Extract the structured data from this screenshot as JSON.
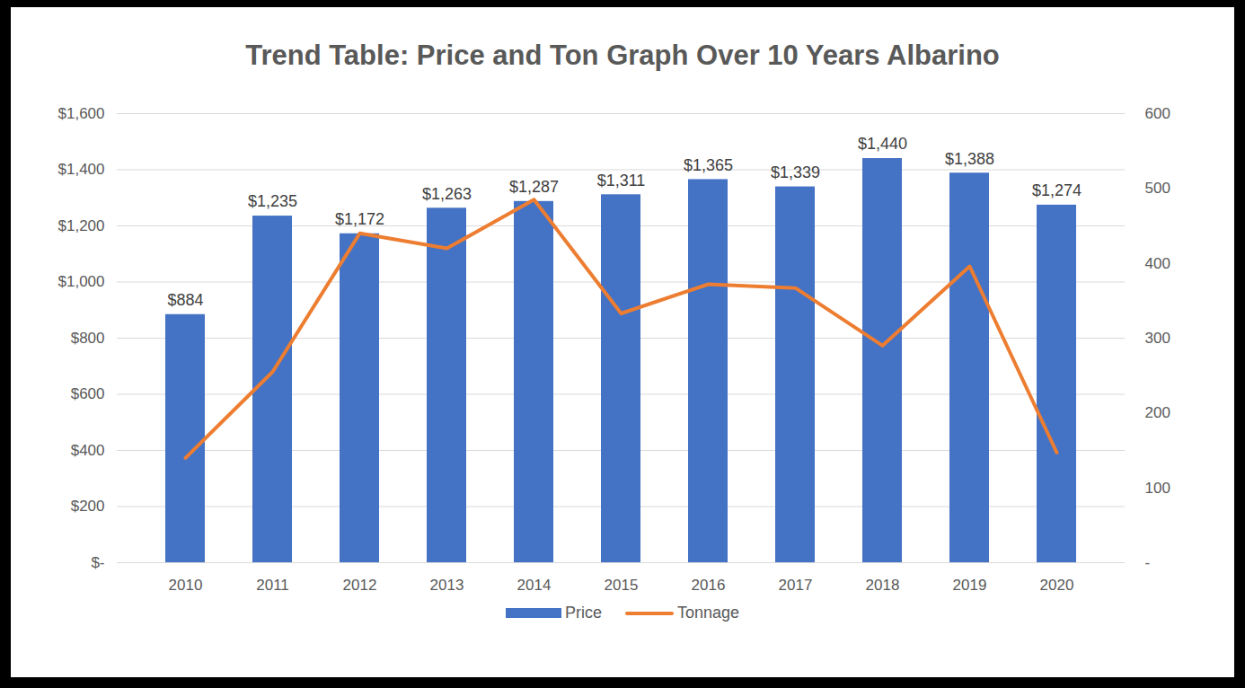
{
  "chart_data": {
    "type": "bar",
    "title": "Trend Table: Price and Ton Graph Over 10 Years Albarino",
    "categories": [
      "2010",
      "2011",
      "2012",
      "2013",
      "2014",
      "2015",
      "2016",
      "2017",
      "2018",
      "2019",
      "2020"
    ],
    "series": [
      {
        "name": "Price",
        "type": "bar",
        "color": "#4472c4",
        "values": [
          884,
          1235,
          1172,
          1263,
          1287,
          1311,
          1365,
          1339,
          1440,
          1388,
          1274
        ],
        "value_labels": [
          "$884",
          "$1,235",
          "$1,172",
          "$1,263",
          "$1,287",
          "$1,311",
          "$1,365",
          "$1,339",
          "$1,440",
          "$1,388",
          "$1,274"
        ]
      },
      {
        "name": "Tonnage",
        "type": "line",
        "color": "#ed7d31",
        "axis": "y2",
        "values": [
          140,
          255,
          440,
          420,
          485,
          333,
          372,
          367,
          290,
          396,
          147
        ]
      }
    ],
    "ylim": [
      0,
      1600
    ],
    "yticks": [
      {
        "value": 0,
        "label": "$-"
      },
      {
        "value": 200,
        "label": "$200"
      },
      {
        "value": 400,
        "label": "$400"
      },
      {
        "value": 600,
        "label": "$600"
      },
      {
        "value": 800,
        "label": "$800"
      },
      {
        "value": 1000,
        "label": "$1,000"
      },
      {
        "value": 1200,
        "label": "$1,200"
      },
      {
        "value": 1400,
        "label": "$1,400"
      },
      {
        "value": 1600,
        "label": "$1,600"
      }
    ],
    "y2lim": [
      0,
      600
    ],
    "y2ticks": [
      {
        "value": 0,
        "label": "-"
      },
      100,
      200,
      300,
      400,
      500,
      600
    ],
    "grid": true,
    "data_labels": true,
    "legend": "bottom"
  }
}
